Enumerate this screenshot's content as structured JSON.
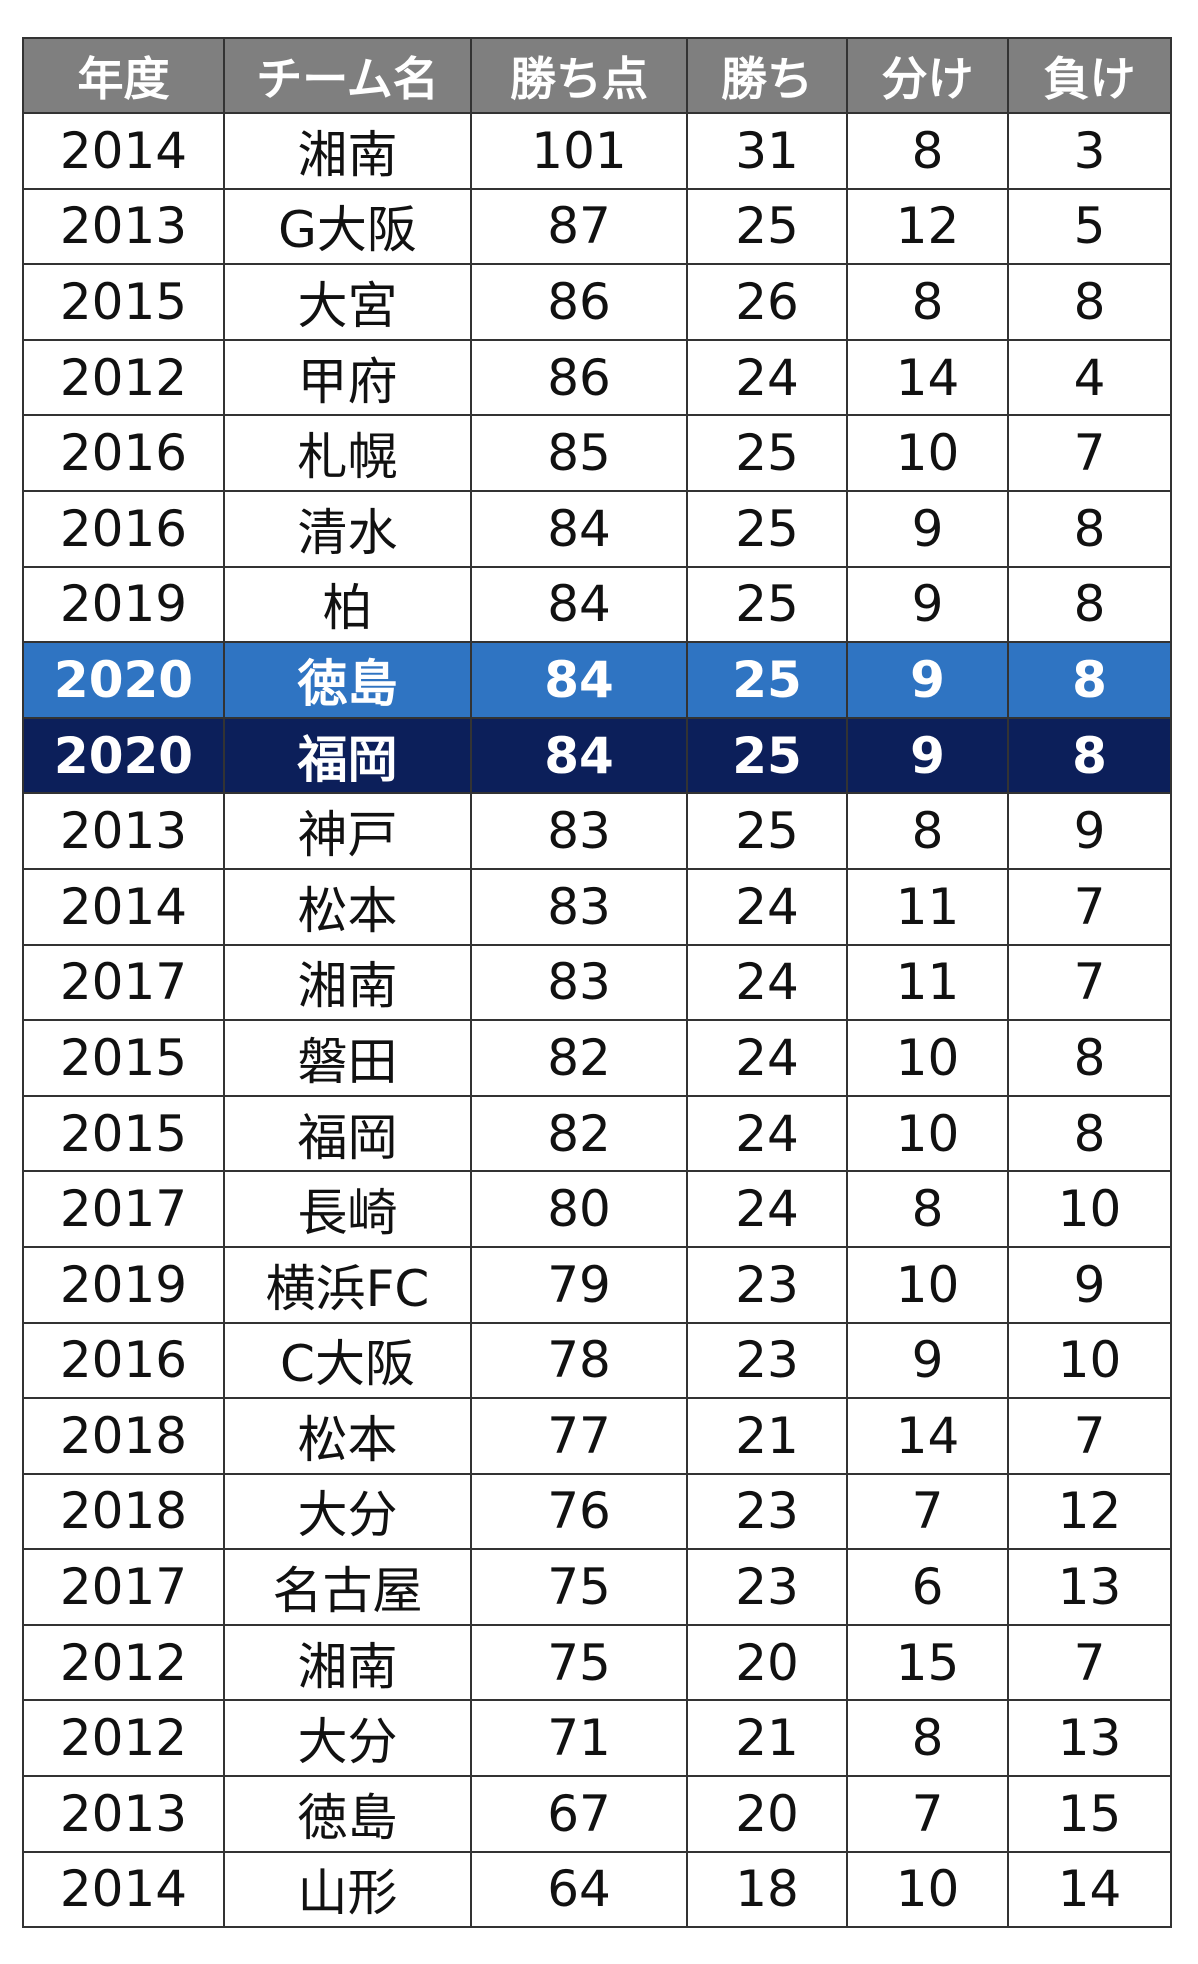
{
  "table": {
    "headers": [
      "年度",
      "チーム名",
      "勝ち点",
      "勝ち",
      "分け",
      "負け"
    ],
    "highlight_colors": {
      "tokushima_2020": "#2f74c2",
      "fukuoka_2020": "#0c1f5a",
      "header": "#7f7f7f"
    },
    "rows": [
      [
        "2014",
        "湘南",
        "101",
        "31",
        "8",
        "3"
      ],
      [
        "2013",
        "G大阪",
        "87",
        "25",
        "12",
        "5"
      ],
      [
        "2015",
        "大宮",
        "86",
        "26",
        "8",
        "8"
      ],
      [
        "2012",
        "甲府",
        "86",
        "24",
        "14",
        "4"
      ],
      [
        "2016",
        "札幌",
        "85",
        "25",
        "10",
        "7"
      ],
      [
        "2016",
        "清水",
        "84",
        "25",
        "9",
        "8"
      ],
      [
        "2019",
        "柏",
        "84",
        "25",
        "9",
        "8"
      ],
      [
        "2020",
        "徳島",
        "84",
        "25",
        "9",
        "8"
      ],
      [
        "2020",
        "福岡",
        "84",
        "25",
        "9",
        "8"
      ],
      [
        "2013",
        "神戸",
        "83",
        "25",
        "8",
        "9"
      ],
      [
        "2014",
        "松本",
        "83",
        "24",
        "11",
        "7"
      ],
      [
        "2017",
        "湘南",
        "83",
        "24",
        "11",
        "7"
      ],
      [
        "2015",
        "磐田",
        "82",
        "24",
        "10",
        "8"
      ],
      [
        "2015",
        "福岡",
        "82",
        "24",
        "10",
        "8"
      ],
      [
        "2017",
        "長崎",
        "80",
        "24",
        "8",
        "10"
      ],
      [
        "2019",
        "横浜FC",
        "79",
        "23",
        "10",
        "9"
      ],
      [
        "2016",
        "C大阪",
        "78",
        "23",
        "9",
        "10"
      ],
      [
        "2018",
        "松本",
        "77",
        "21",
        "14",
        "7"
      ],
      [
        "2018",
        "大分",
        "76",
        "23",
        "7",
        "12"
      ],
      [
        "2017",
        "名古屋",
        "75",
        "23",
        "6",
        "13"
      ],
      [
        "2012",
        "湘南",
        "75",
        "20",
        "15",
        "7"
      ],
      [
        "2012",
        "大分",
        "71",
        "21",
        "8",
        "13"
      ],
      [
        "2013",
        "徳島",
        "67",
        "20",
        "7",
        "15"
      ],
      [
        "2014",
        "山形",
        "64",
        "18",
        "10",
        "14"
      ]
    ],
    "highlighted_rows": {
      "7": "hl1",
      "8": "hl2"
    }
  }
}
